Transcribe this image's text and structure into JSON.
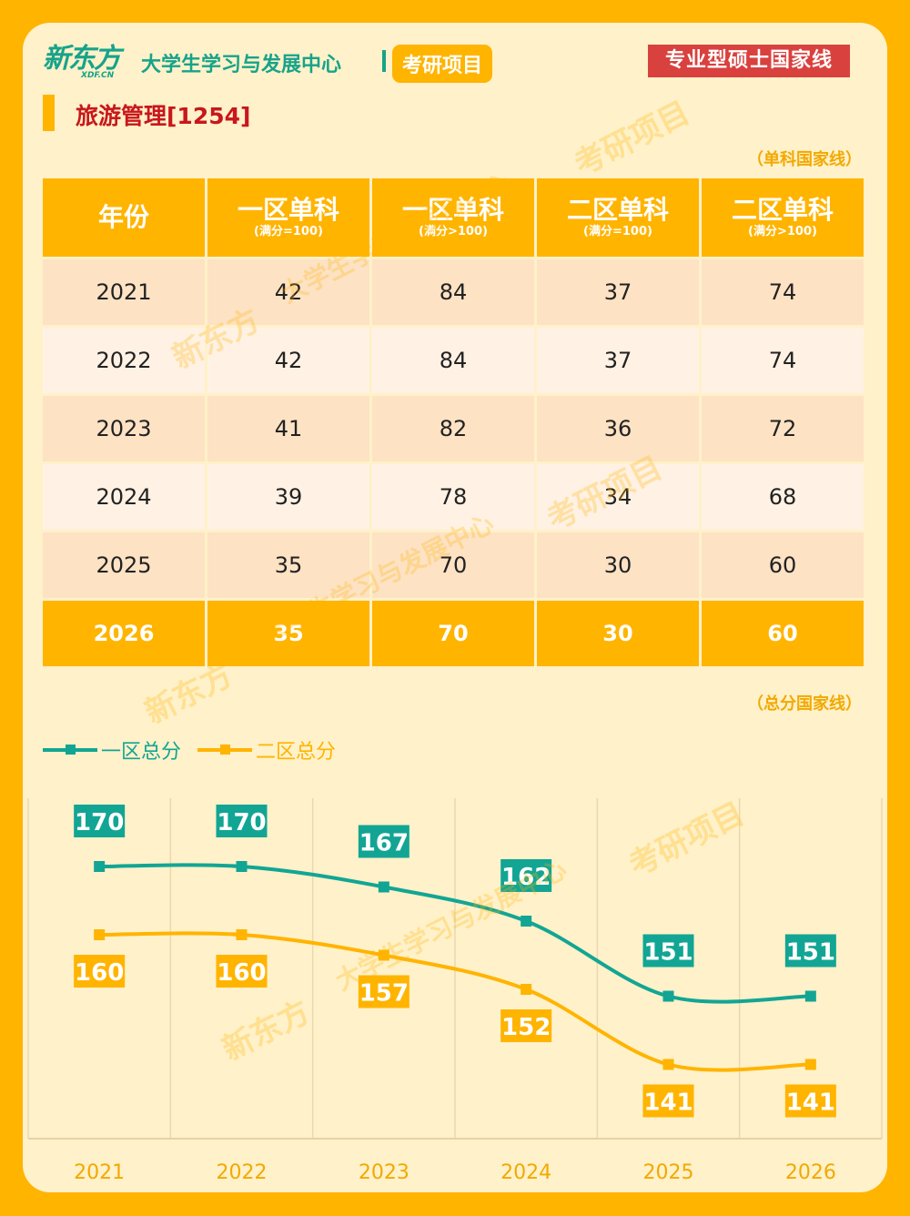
{
  "header": {
    "logo_main": "新东方",
    "logo_sub": "XDF.CN",
    "center_name": "大学生学习与发展中心",
    "project_tag": "考研项目",
    "nat_line_tag": "专业型硕士国家线"
  },
  "major": {
    "title": "旅游管理[1254]"
  },
  "single_note": "（单科国家线）",
  "total_note": "（总分国家线）",
  "table": {
    "headers": [
      {
        "main": "年份",
        "sub": ""
      },
      {
        "main": "一区单科",
        "sub": "(满分=100)"
      },
      {
        "main": "一区单科",
        "sub": "(满分>100)"
      },
      {
        "main": "二区单科",
        "sub": "(满分=100)"
      },
      {
        "main": "二区单科",
        "sub": "(满分>100)"
      }
    ],
    "rows": [
      [
        "2021",
        "42",
        "84",
        "37",
        "74"
      ],
      [
        "2022",
        "42",
        "84",
        "37",
        "74"
      ],
      [
        "2023",
        "41",
        "82",
        "36",
        "72"
      ],
      [
        "2024",
        "39",
        "78",
        "34",
        "68"
      ],
      [
        "2025",
        "35",
        "70",
        "30",
        "60"
      ],
      [
        "2026",
        "35",
        "70",
        "30",
        "60"
      ]
    ]
  },
  "chart_data": {
    "type": "line",
    "categories": [
      "2021",
      "2022",
      "2023",
      "2024",
      "2025",
      "2026"
    ],
    "series": [
      {
        "name": "一区总分",
        "color": "#12A594",
        "values": [
          170,
          170,
          167,
          162,
          151,
          151
        ]
      },
      {
        "name": "二区总分",
        "color": "#FFB400",
        "values": [
          160,
          160,
          157,
          152,
          141,
          141
        ]
      }
    ],
    "grid": true,
    "legend": "top-left"
  },
  "watermarks": [
    "新东方",
    "大学生学习与发展中心",
    "考研项目",
    "XDF.CN"
  ],
  "colors": {
    "accent": "#FFB400",
    "brand_green": "#16A38A",
    "red": "#D9413F",
    "title_red": "#C8171D"
  }
}
